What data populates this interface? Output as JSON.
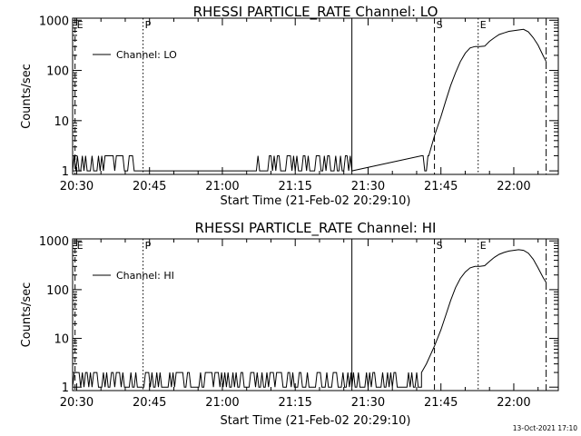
{
  "footer": {
    "timestamp": "13-Oct-2021 17:10"
  },
  "chart_data": [
    {
      "type": "line",
      "title": "RHESSI PARTICLE_RATE Channel: LO",
      "xlabel": "Start Time (21-Feb-02 20:29:10)",
      "ylabel": "Counts/sec",
      "yscale": "log",
      "xlim": [
        "20:29:10",
        "22:09:10"
      ],
      "ylim": [
        0.85,
        1100
      ],
      "xticks": [
        "20:30",
        "20:45",
        "21:00",
        "21:15",
        "21:30",
        "21:45",
        "22:00"
      ],
      "yticks": [
        "1",
        "10",
        "100",
        "1000"
      ],
      "legend": {
        "placement": "top-left",
        "label": "Channel: LO"
      },
      "markers": [
        {
          "time": "20:29:40",
          "style": "dashed",
          "label": "E"
        },
        {
          "time": "20:43:40",
          "style": "dotted",
          "label": "P"
        },
        {
          "time": "21:26:40",
          "style": "solid",
          "label": ""
        },
        {
          "time": "21:43:40",
          "style": "dashed",
          "label": "S"
        },
        {
          "time": "21:52:40",
          "style": "dotted",
          "label": "E"
        },
        {
          "time": "22:06:40",
          "style": "dashdot",
          "label": ""
        }
      ],
      "series": [
        {
          "name": "",
          "noise_segments": [
            {
              "start": "20:29:10",
              "end": "20:43:00",
              "low": 1,
              "high": 2
            },
            {
              "start": "21:06:00",
              "end": "21:26:40",
              "low": 1,
              "high": 2
            },
            {
              "start": "21:41:00",
              "end": "21:42:30",
              "low": 1,
              "high": 2
            }
          ],
          "x": [
            "21:42:30",
            "21:43:40",
            "21:45:00",
            "21:46:00",
            "21:47:00",
            "21:48:00",
            "21:49:00",
            "21:50:00",
            "21:51:00",
            "21:52:00",
            "21:53:00",
            "21:54:00",
            "21:55:00",
            "21:56:00",
            "21:57:00",
            "21:58:00",
            "21:59:00",
            "22:00:00",
            "22:01:00",
            "22:02:00",
            "22:03:00",
            "22:04:00",
            "22:05:00",
            "22:06:00",
            "22:06:40"
          ],
          "y": [
            2,
            5,
            12,
            25,
            50,
            90,
            150,
            220,
            280,
            300,
            300,
            305,
            380,
            450,
            520,
            560,
            600,
            620,
            640,
            660,
            590,
            450,
            320,
            200,
            150
          ]
        }
      ]
    },
    {
      "type": "line",
      "title": "RHESSI PARTICLE_RATE Channel: HI",
      "xlabel": "Start Time (21-Feb-02 20:29:10)",
      "ylabel": "Counts/sec",
      "yscale": "log",
      "xlim": [
        "20:29:10",
        "22:09:10"
      ],
      "ylim": [
        0.85,
        1100
      ],
      "xticks": [
        "20:30",
        "20:45",
        "21:00",
        "21:15",
        "21:30",
        "21:45",
        "22:00"
      ],
      "yticks": [
        "1",
        "10",
        "100",
        "1000"
      ],
      "legend": {
        "placement": "top-left",
        "label": "Channel: HI"
      },
      "markers": [
        {
          "time": "20:29:40",
          "style": "dashed",
          "label": "E"
        },
        {
          "time": "20:43:40",
          "style": "dotted",
          "label": "P"
        },
        {
          "time": "21:26:40",
          "style": "solid",
          "label": ""
        },
        {
          "time": "21:43:40",
          "style": "dashed",
          "label": "S"
        },
        {
          "time": "21:52:40",
          "style": "dotted",
          "label": "E"
        },
        {
          "time": "22:06:40",
          "style": "dashdot",
          "label": ""
        }
      ],
      "series": [
        {
          "name": "",
          "noise_segments": [
            {
              "start": "20:29:10",
              "end": "21:26:40",
              "low": 1,
              "high": 2
            },
            {
              "start": "21:26:40",
              "end": "21:41:00",
              "low": 1,
              "high": 2
            }
          ],
          "x": [
            "21:41:00",
            "21:42:00",
            "21:43:40",
            "21:45:00",
            "21:46:00",
            "21:47:00",
            "21:48:00",
            "21:49:00",
            "21:50:00",
            "21:51:00",
            "21:52:00",
            "21:53:00",
            "21:54:00",
            "21:55:00",
            "21:56:00",
            "21:57:00",
            "21:58:00",
            "21:59:00",
            "22:00:00",
            "22:01:00",
            "22:02:00",
            "22:03:00",
            "22:04:00",
            "22:05:00",
            "22:06:00",
            "22:06:40"
          ],
          "y": [
            2,
            3,
            7,
            15,
            30,
            60,
            110,
            170,
            230,
            280,
            300,
            300,
            310,
            380,
            460,
            530,
            580,
            620,
            640,
            660,
            640,
            560,
            420,
            280,
            180,
            140
          ]
        }
      ]
    }
  ]
}
